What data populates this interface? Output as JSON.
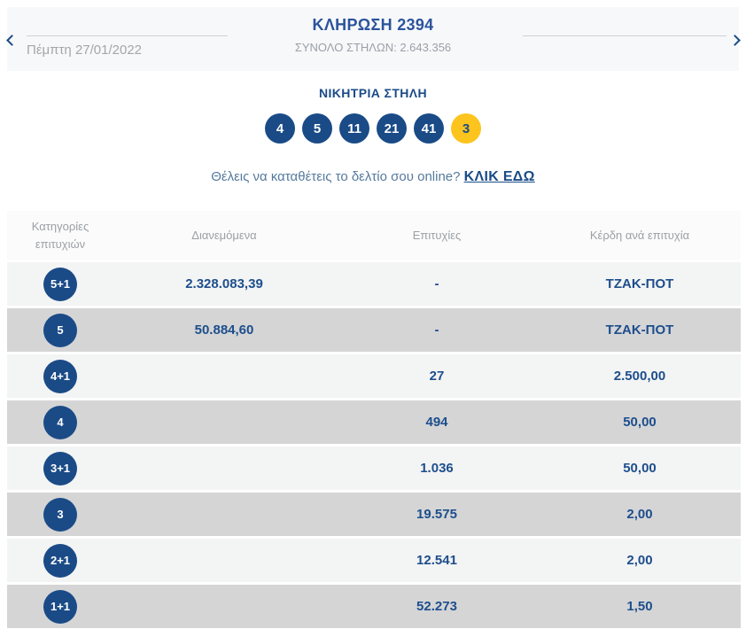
{
  "header": {
    "title": "ΚΛΗΡΩΣΗ 2394",
    "subtitle": "ΣΥΝΟΛΟ ΣΤΗΛΩΝ: 2.643.356",
    "date": "Πέμπτη 27/01/2022"
  },
  "winning": {
    "title": "ΝΙΚΗΤΡΙΑ ΣΤΗΛΗ",
    "numbers": [
      "4",
      "5",
      "11",
      "21",
      "41"
    ],
    "joker": "3"
  },
  "cta": {
    "text": "Θέλεις να καταθέτεις το δελτίο σου online?",
    "link": "ΚΛΙΚ ΕΔΩ"
  },
  "table": {
    "headers": [
      "Κατηγορίες επιτυχιών",
      "Διανεμόμενα",
      "Επιτυχίες",
      "Κέρδη ανά επιτυχία"
    ],
    "rows": [
      {
        "category": "5+1",
        "distributed": "2.328.083,39",
        "winners": "-",
        "prize": "ΤΖΑΚ-ΠΟΤ"
      },
      {
        "category": "5",
        "distributed": "50.884,60",
        "winners": "-",
        "prize": "ΤΖΑΚ-ΠΟΤ"
      },
      {
        "category": "4+1",
        "distributed": "",
        "winners": "27",
        "prize": "2.500,00"
      },
      {
        "category": "4",
        "distributed": "",
        "winners": "494",
        "prize": "50,00"
      },
      {
        "category": "3+1",
        "distributed": "",
        "winners": "1.036",
        "prize": "50,00"
      },
      {
        "category": "3",
        "distributed": "",
        "winners": "19.575",
        "prize": "2,00"
      },
      {
        "category": "2+1",
        "distributed": "",
        "winners": "12.541",
        "prize": "2,00"
      },
      {
        "category": "1+1",
        "distributed": "",
        "winners": "52.273",
        "prize": "1,50"
      }
    ]
  },
  "colors": {
    "ball_blue": "#1a4b87",
    "joker_yellow": "#fcc41d",
    "value_blue": "#1d4e8c",
    "muted_gray": "#9ba0a5"
  }
}
